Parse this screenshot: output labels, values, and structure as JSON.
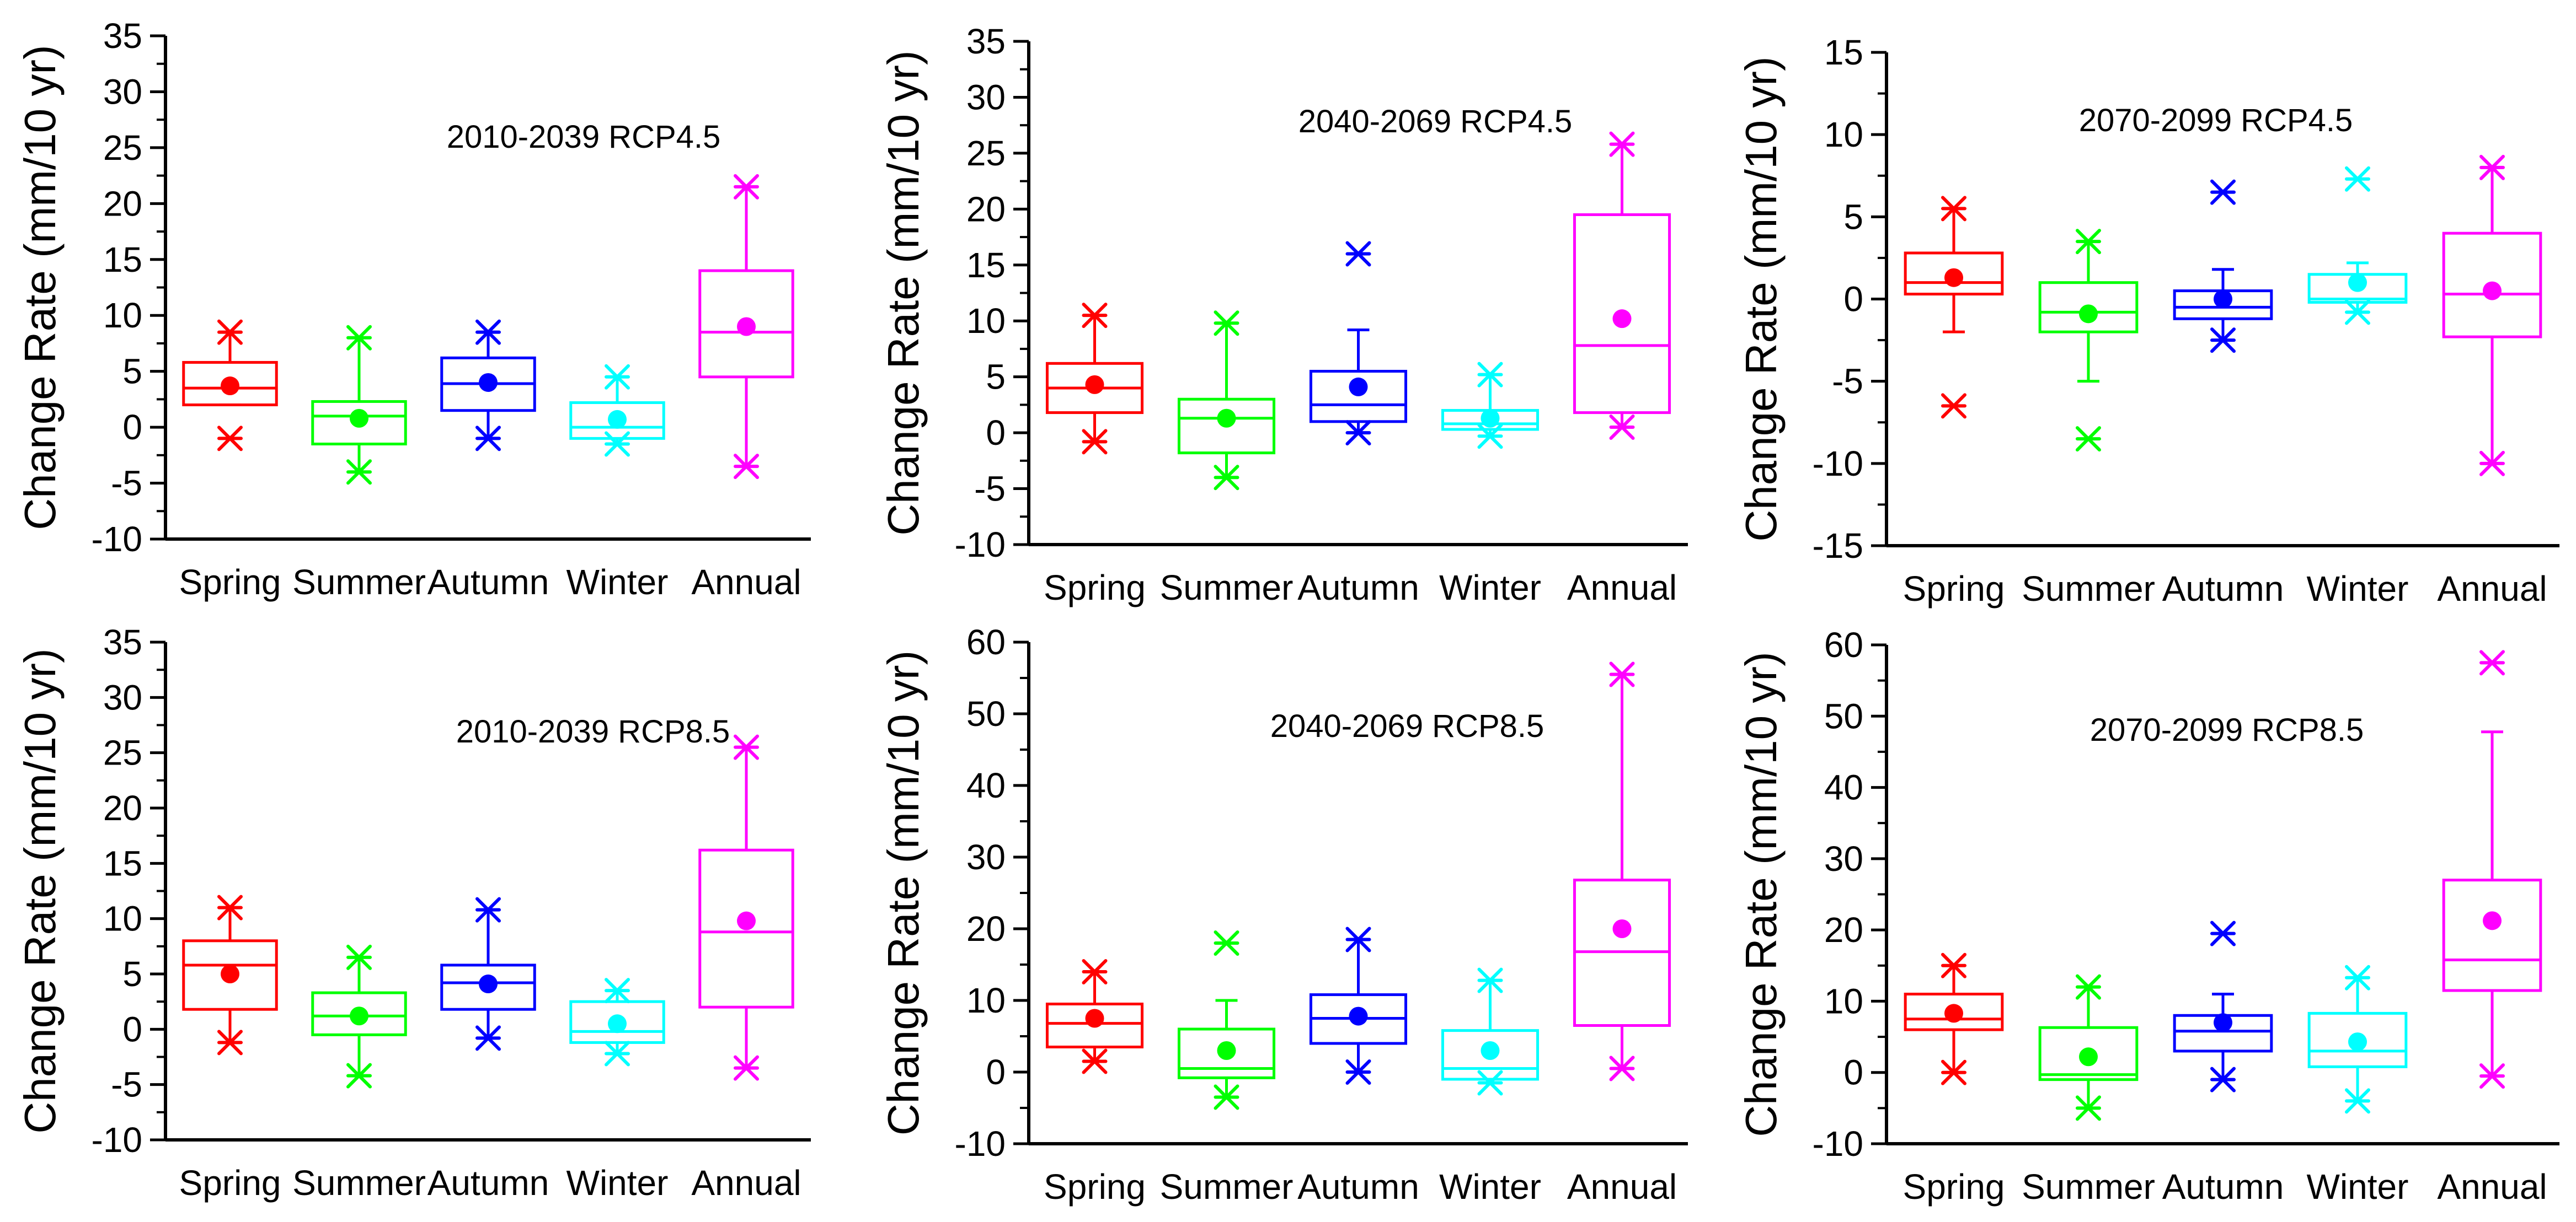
{
  "figure": {
    "ylabel": "Change Rate (mm/10 yr)",
    "categories": [
      "Spring",
      "Summer",
      "Autumn",
      "Winter",
      "Annual"
    ],
    "colors": {
      "Spring": "#ff0000",
      "Summer": "#00ff00",
      "Autumn": "#0000ff",
      "Winter": "#00ffff",
      "Annual": "#ff00ff"
    }
  },
  "chart_data": [
    {
      "type": "box",
      "title": "2010-2039  RCP4.5",
      "xlabel": "",
      "ylabel": "Change Rate (mm/10 yr)",
      "ylim": [
        -10,
        35
      ],
      "yticks": [
        -10,
        -5,
        0,
        5,
        10,
        15,
        20,
        25,
        30,
        35
      ],
      "boxes": [
        {
          "category": "Spring",
          "min": -1,
          "max": 8.5,
          "whisker_low": 2,
          "q1": 2,
          "median": 3.5,
          "q3": 5.8,
          "whisker_high": 8.5,
          "mean": 3.7
        },
        {
          "category": "Summer",
          "min": -4,
          "max": 8,
          "whisker_low": -4,
          "q1": -1.5,
          "median": 1,
          "q3": 2.3,
          "whisker_high": 8,
          "mean": 0.8
        },
        {
          "category": "Autumn",
          "min": -1,
          "max": 8.5,
          "whisker_low": -1,
          "q1": 1.5,
          "median": 3.9,
          "q3": 6.2,
          "whisker_high": 8.5,
          "mean": 4
        },
        {
          "category": "Winter",
          "min": -1.5,
          "max": 4.5,
          "whisker_low": -1.5,
          "q1": -1,
          "median": 0,
          "q3": 2.2,
          "whisker_high": 4.5,
          "mean": 0.7
        },
        {
          "category": "Annual",
          "min": -3.5,
          "max": 21.5,
          "whisker_low": -3.5,
          "q1": 4.5,
          "median": 8.5,
          "q3": 14,
          "whisker_high": 21.5,
          "mean": 9
        }
      ]
    },
    {
      "type": "box",
      "title": "2040-2069  RCP4.5",
      "xlabel": "",
      "ylabel": "Change Rate (mm/10 yr)",
      "ylim": [
        -10,
        35
      ],
      "yticks": [
        -10,
        -5,
        0,
        5,
        10,
        15,
        20,
        25,
        30,
        35
      ],
      "boxes": [
        {
          "category": "Spring",
          "min": -0.8,
          "max": 10.5,
          "whisker_low": -0.8,
          "q1": 1.8,
          "median": 4,
          "q3": 6.2,
          "whisker_high": 10.5,
          "mean": 4.3
        },
        {
          "category": "Summer",
          "min": -4,
          "max": 9.8,
          "whisker_low": -4,
          "q1": -1.8,
          "median": 1.3,
          "q3": 3,
          "whisker_high": 9.8,
          "mean": 1.3
        },
        {
          "category": "Autumn",
          "min": 0,
          "max": 16,
          "whisker_low": 0,
          "q1": 1,
          "median": 2.5,
          "q3": 5.5,
          "whisker_high": 9.2,
          "mean": 4.1
        },
        {
          "category": "Winter",
          "min": -0.3,
          "max": 5.2,
          "whisker_low": -0.3,
          "q1": 0.3,
          "median": 0.8,
          "q3": 2,
          "whisker_high": 5.2,
          "mean": 1.3
        },
        {
          "category": "Annual",
          "min": 0.5,
          "max": 25.8,
          "whisker_low": 0.5,
          "q1": 1.8,
          "median": 7.8,
          "q3": 19.5,
          "whisker_high": 25.8,
          "mean": 10.2
        }
      ]
    },
    {
      "type": "box",
      "title": "2070-2099  RCP4.5",
      "xlabel": "",
      "ylabel": "Change Rate (mm/10 yr)",
      "ylim": [
        -15,
        15
      ],
      "yticks": [
        -15,
        -10,
        -5,
        0,
        5,
        10,
        15
      ],
      "boxes": [
        {
          "category": "Spring",
          "min": -6.5,
          "max": 5.5,
          "whisker_low": -2,
          "q1": 0.3,
          "median": 1,
          "q3": 2.8,
          "whisker_high": 5.5,
          "mean": 1.3
        },
        {
          "category": "Summer",
          "min": -8.5,
          "max": 3.5,
          "whisker_low": -5,
          "q1": -2,
          "median": -0.8,
          "q3": 1,
          "whisker_high": 3.5,
          "mean": -0.9
        },
        {
          "category": "Autumn",
          "min": -2.5,
          "max": 6.5,
          "whisker_low": -2.5,
          "q1": -1.2,
          "median": -0.5,
          "q3": 0.5,
          "whisker_high": 1.8,
          "mean": 0
        },
        {
          "category": "Winter",
          "min": -0.8,
          "max": 7.3,
          "whisker_low": -0.8,
          "q1": -0.2,
          "median": 0,
          "q3": 1.5,
          "whisker_high": 2.2,
          "mean": 1
        },
        {
          "category": "Annual",
          "min": -10,
          "max": 8,
          "whisker_low": -10,
          "q1": -2.3,
          "median": 0.3,
          "q3": 4,
          "whisker_high": 8,
          "mean": 0.5
        }
      ]
    },
    {
      "type": "box",
      "title": "2010-2039  RCP8.5",
      "xlabel": "",
      "ylabel": "Change Rate (mm/10 yr)",
      "ylim": [
        -10,
        35
      ],
      "yticks": [
        -10,
        -5,
        0,
        5,
        10,
        15,
        20,
        25,
        30,
        35
      ],
      "boxes": [
        {
          "category": "Spring",
          "min": -1.2,
          "max": 11,
          "whisker_low": -1.2,
          "q1": 1.8,
          "median": 5.8,
          "q3": 8,
          "whisker_high": 11,
          "mean": 5
        },
        {
          "category": "Summer",
          "min": -4.2,
          "max": 6.5,
          "whisker_low": -4.2,
          "q1": -0.5,
          "median": 1.2,
          "q3": 3.3,
          "whisker_high": 6.5,
          "mean": 1.2
        },
        {
          "category": "Autumn",
          "min": -0.8,
          "max": 10.8,
          "whisker_low": -0.8,
          "q1": 1.8,
          "median": 4.2,
          "q3": 5.8,
          "whisker_high": 10.8,
          "mean": 4.1
        },
        {
          "category": "Winter",
          "min": -2.2,
          "max": 3.5,
          "whisker_low": -2.2,
          "q1": -1.2,
          "median": -0.2,
          "q3": 2.5,
          "whisker_high": 3.5,
          "mean": 0.5
        },
        {
          "category": "Annual",
          "min": -3.5,
          "max": 25.5,
          "whisker_low": -3.5,
          "q1": 2,
          "median": 8.8,
          "q3": 16.2,
          "whisker_high": 25.5,
          "mean": 9.8
        }
      ]
    },
    {
      "type": "box",
      "title": "2040-2069  RCP8.5",
      "xlabel": "",
      "ylabel": "Change Rate (mm/10 yr)",
      "ylim": [
        -10,
        60
      ],
      "yticks": [
        -10,
        0,
        10,
        20,
        30,
        40,
        50,
        60
      ],
      "boxes": [
        {
          "category": "Spring",
          "min": 1.5,
          "max": 14,
          "whisker_low": 1.5,
          "q1": 3.5,
          "median": 6.8,
          "q3": 9.5,
          "whisker_high": 14,
          "mean": 7.5
        },
        {
          "category": "Summer",
          "min": -3.5,
          "max": 18,
          "whisker_low": -3.5,
          "q1": -0.8,
          "median": 0.5,
          "q3": 6,
          "whisker_high": 10,
          "mean": 3
        },
        {
          "category": "Autumn",
          "min": 0,
          "max": 18.5,
          "whisker_low": 0,
          "q1": 4,
          "median": 7.5,
          "q3": 10.8,
          "whisker_high": 18.5,
          "mean": 7.8
        },
        {
          "category": "Winter",
          "min": -1.5,
          "max": 12.8,
          "whisker_low": -1.5,
          "q1": -1,
          "median": 0.5,
          "q3": 5.8,
          "whisker_high": 12.8,
          "mean": 3
        },
        {
          "category": "Annual",
          "min": 0.5,
          "max": 55.5,
          "whisker_low": 0.5,
          "q1": 6.5,
          "median": 16.8,
          "q3": 26.8,
          "whisker_high": 55.5,
          "mean": 20
        }
      ]
    },
    {
      "type": "box",
      "title": "2070-2099  RCP8.5",
      "xlabel": "",
      "ylabel": "Change Rate (mm/10 yr)",
      "ylim": [
        -10,
        60
      ],
      "yticks": [
        -10,
        0,
        10,
        20,
        30,
        40,
        50,
        60
      ],
      "boxes": [
        {
          "category": "Spring",
          "min": 0,
          "max": 15,
          "whisker_low": 0,
          "q1": 6,
          "median": 7.5,
          "q3": 11,
          "whisker_high": 15,
          "mean": 8.3
        },
        {
          "category": "Summer",
          "min": -5,
          "max": 12,
          "whisker_low": -5,
          "q1": -1,
          "median": -0.3,
          "q3": 6.3,
          "whisker_high": 12,
          "mean": 2.2
        },
        {
          "category": "Autumn",
          "min": -1,
          "max": 19.5,
          "whisker_low": -1,
          "q1": 3,
          "median": 5.8,
          "q3": 8,
          "whisker_high": 11,
          "mean": 7
        },
        {
          "category": "Winter",
          "min": -4,
          "max": 13.3,
          "whisker_low": -4,
          "q1": 0.8,
          "median": 3,
          "q3": 8.3,
          "whisker_high": 13.3,
          "mean": 4.3
        },
        {
          "category": "Annual",
          "min": -0.5,
          "max": 57.5,
          "whisker_low": -0.5,
          "q1": 11.5,
          "median": 15.8,
          "q3": 27,
          "whisker_high": 47.8,
          "mean": 21.3
        }
      ]
    }
  ]
}
